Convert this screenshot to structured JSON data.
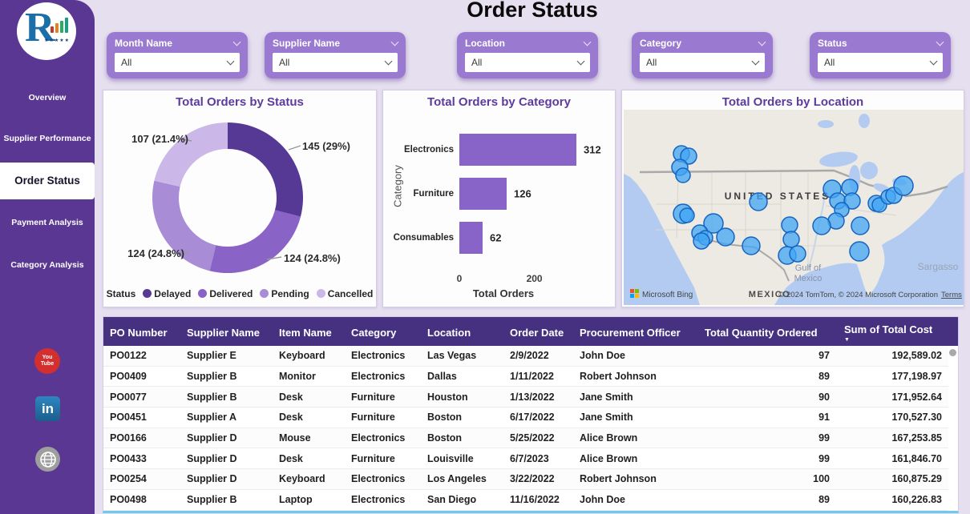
{
  "header": {
    "title": "Order Status"
  },
  "sidebar": {
    "items": [
      {
        "label": "Overview",
        "active": false
      },
      {
        "label": "Supplier Performance",
        "active": false
      },
      {
        "label": "Order Status",
        "active": true
      },
      {
        "label": "Payment Analysis",
        "active": false
      },
      {
        "label": "Category Analysis",
        "active": false
      }
    ],
    "social_icons": [
      "youtube",
      "linkedin",
      "website-globe"
    ],
    "colors": {
      "sidebar_bg": "#5B3794",
      "active_bg": "#FFFFFF"
    }
  },
  "filters": [
    {
      "label": "Month Name",
      "value": "All"
    },
    {
      "label": "Supplier Name",
      "value": "All"
    },
    {
      "label": "Location",
      "value": "All"
    },
    {
      "label": "Category",
      "value": "All"
    },
    {
      "label": "Status",
      "value": "All"
    }
  ],
  "chart_data": [
    {
      "type": "donut",
      "title": "Total Orders by Status",
      "legend_title": "Status",
      "legend_position": "bottom",
      "slices": [
        {
          "label": "Delayed",
          "value": 145,
          "pct": "29%",
          "color": "#563895"
        },
        {
          "label": "Delivered",
          "value": 124,
          "pct": "24.8%",
          "color": "#8A63C6"
        },
        {
          "label": "Pending",
          "value": 124,
          "pct": "24.8%",
          "color": "#A98CD6"
        },
        {
          "label": "Cancelled",
          "value": 107,
          "pct": "21.4%",
          "color": "#CBB7E8"
        }
      ]
    },
    {
      "type": "bar",
      "title": "Total Orders by Category",
      "categories": [
        "Electronics",
        "Furniture",
        "Consumables"
      ],
      "values": [
        312,
        126,
        62
      ],
      "xlabel": "Total Orders",
      "ylabel": "Category",
      "xticks": [
        0,
        200
      ],
      "xlim": [
        0,
        333
      ],
      "bar_color": "#8864C8"
    },
    {
      "type": "map",
      "title": "Total Orders by Location",
      "labels": {
        "country": "UNITED STATES",
        "gulf1": "Gulf of",
        "gulf2": "Mexico",
        "mexico": "MEXICO",
        "sargasso": "Sargasso"
      },
      "attribution_left": "Microsoft Bing",
      "attribution_right": "© 2024 TomTom, © 2024 Microsoft Corporation",
      "terms_label": "Terms",
      "bubble_color": "#42A5F5",
      "bubbles": [
        {
          "x": 72,
          "y": 55,
          "r": 10
        },
        {
          "x": 81,
          "y": 58,
          "r": 10
        },
        {
          "x": 70,
          "y": 72,
          "r": 10
        },
        {
          "x": 74,
          "y": 82,
          "r": 9
        },
        {
          "x": 168,
          "y": 115,
          "r": 11
        },
        {
          "x": 74,
          "y": 130,
          "r": 12
        },
        {
          "x": 79,
          "y": 132,
          "r": 9
        },
        {
          "x": 112,
          "y": 142,
          "r": 12
        },
        {
          "x": 95,
          "y": 154,
          "r": 10
        },
        {
          "x": 102,
          "y": 160,
          "r": 9
        },
        {
          "x": 97,
          "y": 164,
          "r": 10
        },
        {
          "x": 127,
          "y": 159,
          "r": 11
        },
        {
          "x": 159,
          "y": 170,
          "r": 11
        },
        {
          "x": 207,
          "y": 144,
          "r": 10
        },
        {
          "x": 209,
          "y": 162,
          "r": 10
        },
        {
          "x": 204,
          "y": 182,
          "r": 11
        },
        {
          "x": 217,
          "y": 180,
          "r": 10
        },
        {
          "x": 260,
          "y": 99,
          "r": 11
        },
        {
          "x": 282,
          "y": 97,
          "r": 10
        },
        {
          "x": 267,
          "y": 114,
          "r": 10
        },
        {
          "x": 285,
          "y": 114,
          "r": 10
        },
        {
          "x": 272,
          "y": 125,
          "r": 9
        },
        {
          "x": 265,
          "y": 139,
          "r": 10
        },
        {
          "x": 247,
          "y": 145,
          "r": 11
        },
        {
          "x": 295,
          "y": 145,
          "r": 11
        },
        {
          "x": 294,
          "y": 177,
          "r": 12
        },
        {
          "x": 315,
          "y": 117,
          "r": 10
        },
        {
          "x": 319,
          "y": 119,
          "r": 9
        },
        {
          "x": 330,
          "y": 109,
          "r": 9
        },
        {
          "x": 337,
          "y": 107,
          "r": 10
        },
        {
          "x": 349,
          "y": 95,
          "r": 12
        }
      ]
    }
  ],
  "table": {
    "columns": [
      "PO Number",
      "Supplier Name",
      "Item Name",
      "Category",
      "Location",
      "Order Date",
      "Procurement Officer",
      "Total Quantity Ordered",
      "Sum of Total Cost"
    ],
    "sorted_column": "Sum of Total Cost",
    "sort_direction": "desc",
    "rows": [
      [
        "PO0122",
        "Supplier E",
        "Keyboard",
        "Electronics",
        "Las Vegas",
        "2/9/2022",
        "John Doe",
        "97",
        "192,589.02"
      ],
      [
        "PO0409",
        "Supplier B",
        "Monitor",
        "Electronics",
        "Dallas",
        "1/11/2022",
        "Robert Johnson",
        "89",
        "177,198.97"
      ],
      [
        "PO0077",
        "Supplier B",
        "Desk",
        "Furniture",
        "Houston",
        "1/13/2022",
        "Jane Smith",
        "90",
        "171,952.64"
      ],
      [
        "PO0451",
        "Supplier A",
        "Desk",
        "Furniture",
        "Boston",
        "6/17/2022",
        "Jane Smith",
        "91",
        "170,527.30"
      ],
      [
        "PO0166",
        "Supplier D",
        "Mouse",
        "Electronics",
        "Boston",
        "5/25/2022",
        "Alice Brown",
        "99",
        "167,253.85"
      ],
      [
        "PO0433",
        "Supplier D",
        "Desk",
        "Furniture",
        "Louisville",
        "6/7/2023",
        "Alice Brown",
        "99",
        "161,846.70"
      ],
      [
        "PO0254",
        "Supplier D",
        "Keyboard",
        "Electronics",
        "Los Angeles",
        "3/22/2022",
        "Robert Johnson",
        "100",
        "160,875.29"
      ],
      [
        "PO0498",
        "Supplier B",
        "Laptop",
        "Electronics",
        "San Diego",
        "11/16/2022",
        "John Doe",
        "89",
        "160,226.83"
      ]
    ]
  }
}
